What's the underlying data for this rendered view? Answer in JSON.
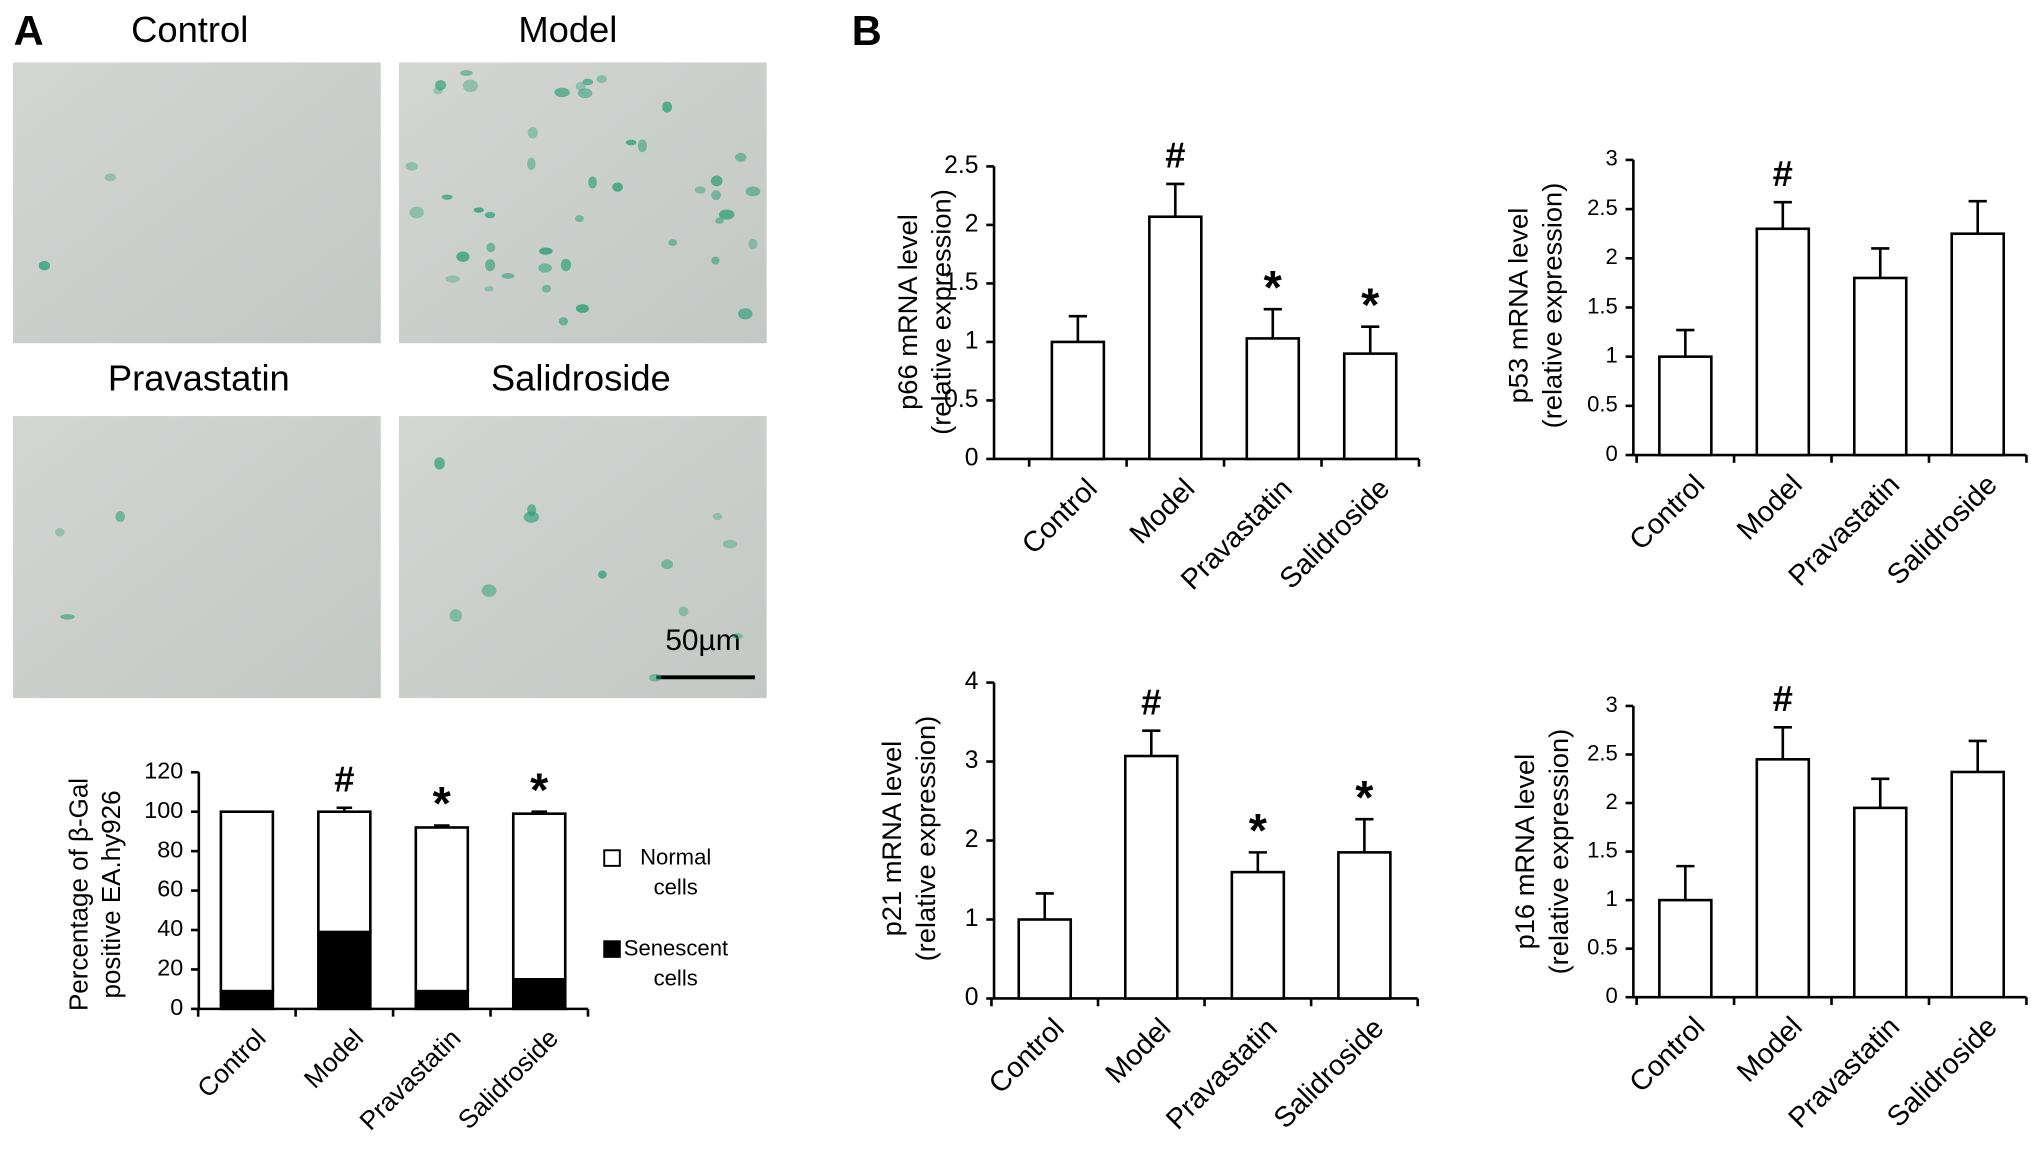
{
  "panel_labels": [
    "A",
    "B"
  ],
  "micrographs": {
    "titles": [
      "Control",
      "Model",
      "Pravastatin",
      "Salidroside"
    ],
    "scale_bar": "50µm"
  },
  "chart_data": [
    {
      "type": "stacked_bar",
      "ylabel": [
        "Percentage of β-Gal",
        "positive EA.hy926"
      ],
      "categories": [
        "Control",
        "Model",
        "Pravastatin",
        "Salidroside"
      ],
      "series": [
        {
          "name": "Senescent cells",
          "color": "#000000",
          "values": [
            9,
            39,
            9,
            15
          ]
        },
        {
          "name": "Normal cells",
          "color": "#ffffff",
          "values": [
            91,
            61,
            83,
            84
          ],
          "errors": [
            null,
            2,
            1,
            1
          ]
        }
      ],
      "markers": [
        null,
        "#",
        "*",
        "*"
      ],
      "ylim": [
        0,
        120
      ],
      "yticks": [
        0,
        20,
        40,
        60,
        80,
        100,
        120
      ]
    },
    {
      "type": "bar",
      "ylabel": [
        "p66 mRNA level",
        "(relative expression)"
      ],
      "categories": [
        "Control",
        "Model",
        "Pravastatin",
        "Salidroside"
      ],
      "values": [
        1.0,
        2.07,
        1.03,
        0.9
      ],
      "errors": [
        0.22,
        0.28,
        0.25,
        0.23
      ],
      "color": "#ffffff",
      "markers": [
        null,
        "#",
        "*",
        "*"
      ],
      "ylim": [
        0,
        2.5
      ],
      "yticks": [
        0,
        0.5,
        1,
        1.5,
        2,
        2.5
      ]
    },
    {
      "type": "bar",
      "ylabel": [
        "p53 mRNA level",
        "(relative expression)"
      ],
      "categories": [
        "Control",
        "Model",
        "Pravastatin",
        "Salidroside"
      ],
      "values": [
        1.0,
        2.3,
        1.8,
        2.25
      ],
      "errors": [
        0.27,
        0.27,
        0.3,
        0.33
      ],
      "color": "#ffffff",
      "markers": [
        null,
        "#",
        null,
        null
      ],
      "ylim": [
        0,
        3
      ],
      "yticks": [
        0,
        0.5,
        1,
        1.5,
        2,
        2.5,
        3
      ]
    },
    {
      "type": "bar",
      "ylabel": [
        "p21 mRNA level",
        "(relative expression)"
      ],
      "categories": [
        "Control",
        "Model",
        "Pravastatin",
        "Salidroside"
      ],
      "values": [
        1.0,
        3.07,
        1.6,
        1.85
      ],
      "errors": [
        0.33,
        0.32,
        0.25,
        0.42
      ],
      "color": "#ffffff",
      "markers": [
        null,
        "#",
        "*",
        "*"
      ],
      "ylim": [
        0,
        4
      ],
      "yticks": [
        0,
        1,
        2,
        3,
        4
      ]
    },
    {
      "type": "bar",
      "ylabel": [
        "p16 mRNA level",
        "(relative expression)"
      ],
      "categories": [
        "Control",
        "Model",
        "Pravastatin",
        "Salidroside"
      ],
      "values": [
        1.0,
        2.45,
        1.95,
        2.32
      ],
      "errors": [
        0.35,
        0.33,
        0.3,
        0.32
      ],
      "color": "#ffffff",
      "markers": [
        null,
        "#",
        null,
        null
      ],
      "ylim": [
        0,
        3
      ],
      "yticks": [
        0,
        0.5,
        1,
        1.5,
        2,
        2.5,
        3
      ]
    }
  ]
}
